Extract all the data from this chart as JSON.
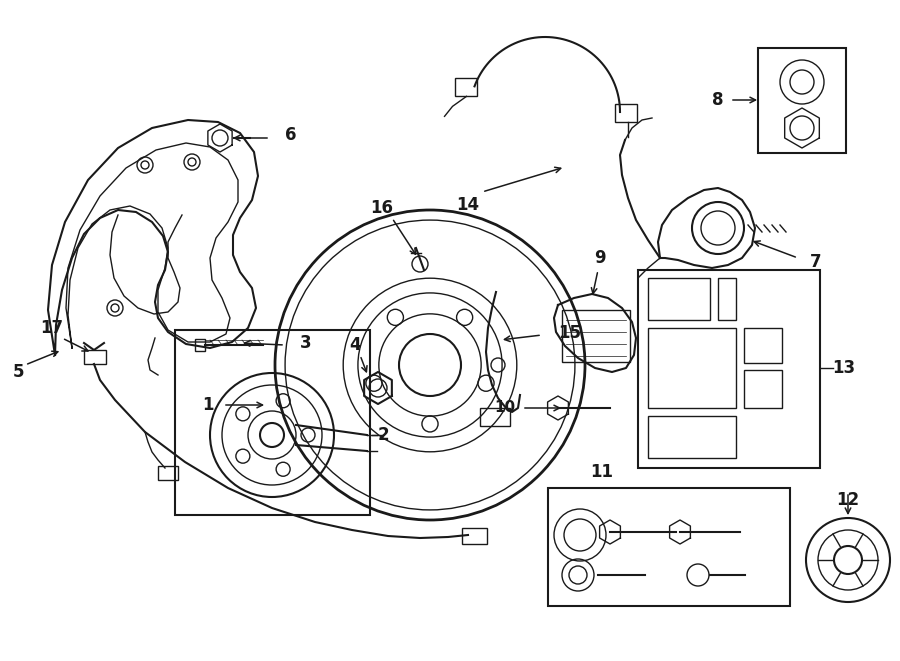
{
  "bg_color": "#ffffff",
  "line_color": "#1a1a1a",
  "fig_width": 9.0,
  "fig_height": 6.61
}
